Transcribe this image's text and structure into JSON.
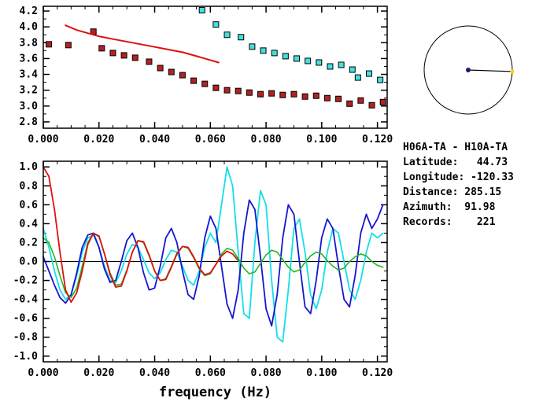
{
  "window": {
    "background": "#ffffff"
  },
  "info": {
    "lines": [
      "H06A-TA - H10A-TA",
      "Latitude:   44.73",
      "Longitude: -120.33",
      "Distance: 285.15",
      "Azimuth:  91.98",
      "Records:    221"
    ]
  },
  "dial": {
    "azimuth_deg": 91.98,
    "circle_color": "#000000",
    "line_color": "#000000",
    "center_dot_color": "#1a1a70",
    "end_dot_color": "#ffd700"
  },
  "chart_data": [
    {
      "type": "scatter",
      "title": "",
      "xlabel": "",
      "ylabel": "",
      "xlim": [
        0,
        0.1235
      ],
      "ylim": [
        2.72,
        4.26
      ],
      "grid": false,
      "zeroline": false,
      "xticks": [
        0,
        0.02,
        0.04,
        0.06,
        0.08,
        0.1,
        0.12
      ],
      "xtick_labels": [
        "0.000",
        "0.020",
        "0.040",
        "0.060",
        "0.080",
        "0.100",
        "0.120"
      ],
      "yticks": [
        2.8,
        3.0,
        3.2,
        3.4,
        3.6,
        3.8,
        4.0,
        4.2
      ],
      "ytick_labels": [
        "2.8",
        "3.0",
        "3.2",
        "3.4",
        "3.6",
        "3.8",
        "4.0",
        "4.2"
      ],
      "series": [
        {
          "name": "red-dispersion-picks",
          "kind": "scatter",
          "color": "#b22222",
          "x": [
            0.002,
            0.009,
            0.018,
            0.021,
            0.025,
            0.029,
            0.033,
            0.038,
            0.042,
            0.046,
            0.05,
            0.054,
            0.058,
            0.062,
            0.066,
            0.07,
            0.074,
            0.078,
            0.082,
            0.086,
            0.09,
            0.094,
            0.098,
            0.102,
            0.106,
            0.11,
            0.114,
            0.118,
            0.122
          ],
          "y": [
            3.78,
            3.77,
            3.94,
            3.73,
            3.67,
            3.64,
            3.61,
            3.56,
            3.48,
            3.43,
            3.39,
            3.32,
            3.28,
            3.23,
            3.2,
            3.19,
            3.17,
            3.15,
            3.16,
            3.14,
            3.15,
            3.12,
            3.13,
            3.1,
            3.09,
            3.03,
            3.07,
            3.01,
            3.05
          ]
        },
        {
          "name": "cyan-dispersion-picks",
          "kind": "scatter",
          "color": "#45dfdc",
          "x": [
            0.057,
            0.062,
            0.066,
            0.071,
            0.075,
            0.079,
            0.083,
            0.087,
            0.091,
            0.095,
            0.099,
            0.103,
            0.107,
            0.111,
            0.113,
            0.117,
            0.121
          ],
          "y": [
            4.21,
            4.03,
            3.9,
            3.87,
            3.75,
            3.7,
            3.67,
            3.63,
            3.6,
            3.57,
            3.55,
            3.5,
            3.52,
            3.46,
            3.36,
            3.41,
            3.33
          ]
        },
        {
          "name": "red-model-curve",
          "kind": "line",
          "color": "#dd1111",
          "width": 2,
          "x": [
            0.008,
            0.012,
            0.016,
            0.02,
            0.026,
            0.032,
            0.038,
            0.044,
            0.05,
            0.056,
            0.06,
            0.063
          ],
          "y": [
            4.02,
            3.96,
            3.92,
            3.88,
            3.84,
            3.8,
            3.76,
            3.72,
            3.68,
            3.62,
            3.58,
            3.55
          ]
        }
      ]
    },
    {
      "type": "line",
      "title": "",
      "xlabel": "frequency (Hz)",
      "ylabel": "",
      "xlim": [
        0,
        0.1235
      ],
      "ylim": [
        -1.06,
        1.06
      ],
      "grid": false,
      "zeroline": true,
      "xticks": [
        0,
        0.02,
        0.04,
        0.06,
        0.08,
        0.1,
        0.12
      ],
      "xtick_labels": [
        "0.000",
        "0.020",
        "0.040",
        "0.060",
        "0.080",
        "0.100",
        "0.120"
      ],
      "yticks": [
        -1.0,
        -0.8,
        -0.6,
        -0.4,
        -0.2,
        0.0,
        0.2,
        0.4,
        0.6,
        0.8,
        1.0
      ],
      "ytick_labels": [
        "-1.0",
        "-0.8",
        "-0.6",
        "-0.4",
        "-0.2",
        "0.0",
        "0.2",
        "0.4",
        "0.6",
        "0.8",
        "1.0"
      ],
      "series": [
        {
          "name": "cyan-spectrum",
          "kind": "line",
          "color": "#12dfe8",
          "width": 1.8,
          "x0": 0,
          "dx": 0.002,
          "y": [
            0.35,
            0.15,
            -0.1,
            -0.3,
            -0.4,
            -0.35,
            -0.15,
            0.1,
            0.25,
            0.28,
            0.15,
            -0.05,
            -0.2,
            -0.22,
            -0.1,
            0.08,
            0.18,
            0.15,
            0.02,
            -0.12,
            -0.18,
            -0.12,
            0.02,
            0.12,
            0.1,
            -0.05,
            -0.2,
            -0.25,
            -0.1,
            0.15,
            0.3,
            0.2,
            0.6,
            1.0,
            0.8,
            0.1,
            -0.55,
            -0.6,
            0.2,
            0.75,
            0.6,
            -0.2,
            -0.8,
            -0.85,
            -0.3,
            0.35,
            0.45,
            0.1,
            -0.35,
            -0.5,
            -0.3,
            0.1,
            0.35,
            0.3,
            0.0,
            -0.3,
            -0.4,
            -0.2,
            0.1,
            0.3,
            0.25,
            0.3
          ]
        },
        {
          "name": "blue-spectrum",
          "kind": "line",
          "color": "#1616cf",
          "width": 1.8,
          "x0": 0,
          "dx": 0.002,
          "y": [
            0.05,
            -0.1,
            -0.25,
            -0.38,
            -0.44,
            -0.35,
            -0.12,
            0.15,
            0.28,
            0.3,
            0.15,
            -0.08,
            -0.22,
            -0.2,
            0.0,
            0.22,
            0.3,
            0.15,
            -0.12,
            -0.3,
            -0.28,
            -0.05,
            0.25,
            0.35,
            0.2,
            -0.1,
            -0.35,
            -0.4,
            -0.15,
            0.25,
            0.48,
            0.35,
            -0.05,
            -0.45,
            -0.6,
            -0.3,
            0.3,
            0.65,
            0.55,
            0.05,
            -0.5,
            -0.68,
            -0.35,
            0.25,
            0.6,
            0.5,
            0.0,
            -0.48,
            -0.55,
            -0.2,
            0.25,
            0.45,
            0.35,
            -0.05,
            -0.4,
            -0.48,
            -0.15,
            0.3,
            0.5,
            0.35,
            0.45,
            0.6
          ]
        },
        {
          "name": "green-spectrum",
          "kind": "line",
          "color": "#23b823",
          "width": 1.6,
          "x0": 0,
          "dx": 0.002,
          "y": [
            0.25,
            0.2,
            0.05,
            -0.15,
            -0.33,
            -0.38,
            -0.28,
            -0.05,
            0.2,
            0.3,
            0.26,
            0.08,
            -0.12,
            -0.25,
            -0.24,
            -0.09,
            0.1,
            0.22,
            0.2,
            0.06,
            -0.1,
            -0.2,
            -0.18,
            -0.05,
            0.09,
            0.16,
            0.14,
            0.04,
            -0.08,
            -0.15,
            -0.13,
            -0.03,
            0.08,
            0.14,
            0.12,
            0.03,
            -0.07,
            -0.13,
            -0.11,
            -0.02,
            0.07,
            0.12,
            0.1,
            0.02,
            -0.06,
            -0.11,
            -0.09,
            -0.01,
            0.06,
            0.1,
            0.08,
            0.01,
            -0.05,
            -0.09,
            -0.07,
            0.0,
            0.05,
            0.08,
            0.06,
            0.0,
            -0.04,
            -0.06
          ]
        },
        {
          "name": "red-spectrum",
          "kind": "line",
          "color": "#e01010",
          "width": 1.8,
          "x0": 0,
          "dx": 0.002,
          "y": [
            1.0,
            0.9,
            0.55,
            0.1,
            -0.3,
            -0.43,
            -0.33,
            -0.1,
            0.18,
            0.3,
            0.27,
            0.08,
            -0.14,
            -0.27,
            -0.26,
            -0.1,
            0.1,
            0.22,
            0.21,
            0.07,
            -0.1,
            -0.2,
            -0.19,
            -0.06,
            0.08,
            0.16,
            0.15,
            0.05,
            -0.07,
            -0.14,
            -0.12,
            -0.03,
            0.06,
            0.11,
            0.08,
            0.01
          ]
        }
      ]
    }
  ]
}
